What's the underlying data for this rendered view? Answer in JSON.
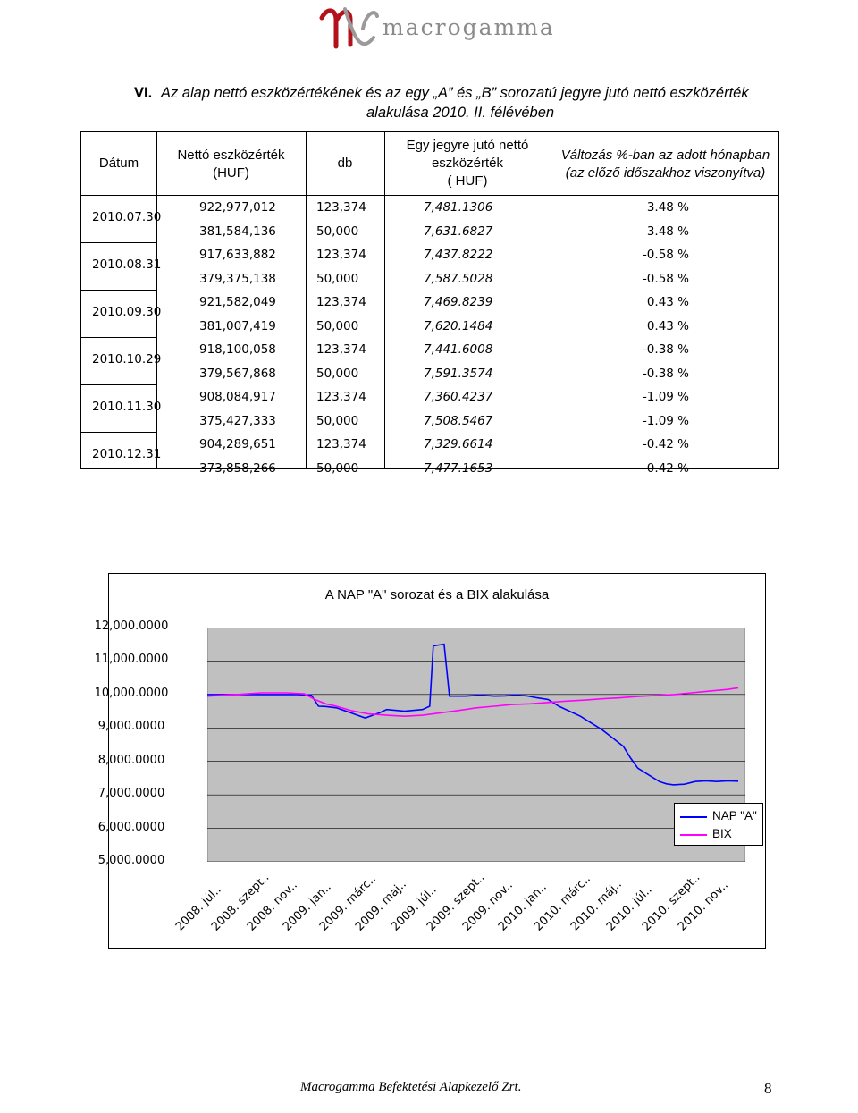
{
  "logo": {
    "text": "macrogamma"
  },
  "heading": {
    "number": "VI.",
    "line1": "Az alap nettó eszközértékének és az egy „A” és „B” sorozatú jegyre jutó nettó eszközérték",
    "line2": "alakulása 2010. II. félévében"
  },
  "table": {
    "headers": {
      "date": "Dátum",
      "net_value_1": "Nettó eszközérték",
      "net_value_2": "(HUF)",
      "db": "db",
      "per_unit_1": "Egy jegyre jutó nettó",
      "per_unit_2": "eszközérték",
      "per_unit_3": "( HUF)",
      "change_1": "Változás %-ban az adott hónapban",
      "change_2": "(az előző időszakhoz viszonyítva)"
    },
    "groups": [
      {
        "date": "2010.07.30",
        "rows": [
          {
            "net": "922,977,012",
            "db": "123,374",
            "unit": "7,481.1306",
            "chg": "3.48 %"
          },
          {
            "net": "381,584,136",
            "db": "50,000",
            "unit": "7,631.6827",
            "chg": "3.48 %"
          }
        ]
      },
      {
        "date": "2010.08.31",
        "rows": [
          {
            "net": "917,633,882",
            "db": "123,374",
            "unit": "7,437.8222",
            "chg": "-0.58 %"
          },
          {
            "net": "379,375,138",
            "db": "50,000",
            "unit": "7,587.5028",
            "chg": "-0.58 %"
          }
        ]
      },
      {
        "date": "2010.09.30",
        "rows": [
          {
            "net": "921,582,049",
            "db": "123,374",
            "unit": "7,469.8239",
            "chg": "0.43 %"
          },
          {
            "net": "381,007,419",
            "db": "50,000",
            "unit": "7,620.1484",
            "chg": "0.43 %"
          }
        ]
      },
      {
        "date": "2010.10.29",
        "rows": [
          {
            "net": "918,100,058",
            "db": "123,374",
            "unit": "7,441.6008",
            "chg": "-0.38 %"
          },
          {
            "net": "379,567,868",
            "db": "50,000",
            "unit": "7,591.3574",
            "chg": "-0.38 %"
          }
        ]
      },
      {
        "date": "2010.11.30",
        "rows": [
          {
            "net": "908,084,917",
            "db": "123,374",
            "unit": "7,360.4237",
            "chg": "-1.09 %"
          },
          {
            "net": "375,427,333",
            "db": "50,000",
            "unit": "7,508.5467",
            "chg": "-1.09 %"
          }
        ]
      },
      {
        "date": "2010.12.31",
        "rows": [
          {
            "net": "904,289,651",
            "db": "123,374",
            "unit": "7,329.6614",
            "chg": "-0.42 %"
          },
          {
            "net": "373,858,266",
            "db": "50,000",
            "unit": "7,477.1653",
            "chg": "-0.42 %"
          }
        ]
      }
    ]
  },
  "chart_data": {
    "type": "line",
    "title": "A NAP \"A\" sorozat és a BIX alakulása",
    "ylim": [
      5000,
      12000
    ],
    "yticks": [
      "12,000.0000",
      "11,000.0000",
      "10,000.0000",
      "9,000.0000",
      "8,000.0000",
      "7,000.0000",
      "6,000.0000",
      "5,000.0000"
    ],
    "categories": [
      "2008. júl..",
      "2008. szept..",
      "2008. nov..",
      "2009. jan..",
      "2009. márc..",
      "2009. máj..",
      "2009. júl..",
      "2009. szept..",
      "2009. nov..",
      "2010. jan..",
      "2010. márc..",
      "2010. máj..",
      "2010. júl..",
      "2010. szept..",
      "2010. nov.."
    ],
    "grid": true,
    "legend_position": "right",
    "series": [
      {
        "name": "NAP \"A\"",
        "color": "#0000ff",
        "x": [
          0,
          1.5,
          2.5,
          2.9,
          3.1,
          3.3,
          3.6,
          4.0,
          4.4,
          4.8,
          5.0,
          5.5,
          6.0,
          6.2,
          6.3,
          6.45,
          6.6,
          6.75,
          6.9,
          7.2,
          7.6,
          8.0,
          8.3,
          8.6,
          8.9,
          9.2,
          9.5,
          9.8,
          10.1,
          10.4,
          10.7,
          11.0,
          11.3,
          11.6,
          11.8,
          12.0,
          12.3,
          12.6,
          12.8,
          13.0,
          13.3,
          13.6,
          13.9,
          14.2,
          14.5,
          14.8
        ],
        "values": [
          10000,
          10000,
          10000,
          9980,
          9650,
          9640,
          9600,
          9450,
          9300,
          9450,
          9550,
          9500,
          9550,
          9650,
          11450,
          11480,
          11500,
          9950,
          9950,
          9950,
          9980,
          9950,
          9960,
          9980,
          9960,
          9900,
          9850,
          9650,
          9500,
          9350,
          9150,
          8950,
          8700,
          8450,
          8100,
          7800,
          7600,
          7400,
          7330,
          7300,
          7320,
          7400,
          7420,
          7400,
          7420,
          7410
        ]
      },
      {
        "name": "BIX",
        "color": "#ff00ff",
        "x": [
          0,
          0.8,
          1.5,
          2.2,
          2.7,
          3.0,
          3.3,
          3.6,
          4.0,
          4.5,
          5.0,
          5.5,
          6.0,
          6.5,
          7.0,
          7.5,
          8.0,
          8.5,
          9.0,
          9.5,
          10.0,
          10.5,
          11.0,
          11.5,
          12.0,
          12.5,
          13.0,
          13.5,
          14.0,
          14.5,
          14.8
        ],
        "values": [
          9950,
          10000,
          10050,
          10050,
          10020,
          9850,
          9720,
          9650,
          9520,
          9420,
          9380,
          9350,
          9380,
          9450,
          9520,
          9600,
          9650,
          9700,
          9720,
          9760,
          9800,
          9830,
          9870,
          9900,
          9940,
          9970,
          10000,
          10050,
          10100,
          10150,
          10200
        ]
      }
    ]
  },
  "footer": {
    "text": "Macrogamma Befektetési Alapkezelő Zrt.",
    "page": "8"
  }
}
